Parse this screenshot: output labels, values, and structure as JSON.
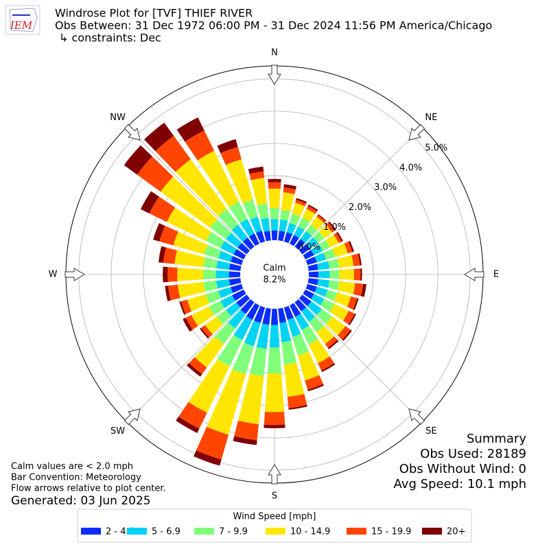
{
  "chart_data": {
    "type": "windrose",
    "title": "Windrose Plot for [TVF] THIEF RIVER",
    "subtitle": "Obs Between: 31 Dec 1972 06:00 PM - 31 Dec 2024 11:56 PM America/Chicago",
    "constraints": "↳ constraints: Dec",
    "logo_text": "IEM",
    "x": [
      0,
      10,
      20,
      30,
      40,
      50,
      60,
      70,
      80,
      90,
      100,
      110,
      120,
      130,
      140,
      150,
      160,
      170,
      180,
      190,
      200,
      210,
      220,
      230,
      240,
      250,
      260,
      270,
      280,
      290,
      300,
      310,
      320,
      330,
      340,
      350
    ],
    "compass_labels": [
      "N",
      "NE",
      "E",
      "SE",
      "S",
      "SW",
      "W",
      "NW"
    ],
    "ylim": [
      0,
      5.4
    ],
    "yticks": [
      {
        "value": 0,
        "label": "0.0%"
      },
      {
        "value": 1,
        "label": "1.0%"
      },
      {
        "value": 2,
        "label": "2.0%"
      },
      {
        "value": 3,
        "label": "3.0%"
      },
      {
        "value": 4,
        "label": "4.0%"
      },
      {
        "value": 5,
        "label": "5.0%"
      }
    ],
    "grid": true,
    "calm": {
      "label": "Calm",
      "value": 8.2,
      "value_label": "8.2%"
    },
    "legend_title": "Wind Speed [mph]",
    "series": [
      {
        "name": "2 - 4.9",
        "color": "#0a2cff",
        "values": [
          0.3,
          0.3,
          0.3,
          0.3,
          0.3,
          0.3,
          0.3,
          0.3,
          0.3,
          0.3,
          0.3,
          0.3,
          0.3,
          0.35,
          0.35,
          0.4,
          0.4,
          0.45,
          0.5,
          0.5,
          0.5,
          0.5,
          0.45,
          0.4,
          0.4,
          0.35,
          0.35,
          0.35,
          0.35,
          0.35,
          0.35,
          0.35,
          0.35,
          0.35,
          0.35,
          0.3
        ]
      },
      {
        "name": "5 - 6.9",
        "color": "#00d4f4",
        "values": [
          0.35,
          0.35,
          0.3,
          0.3,
          0.3,
          0.3,
          0.3,
          0.3,
          0.35,
          0.35,
          0.35,
          0.35,
          0.35,
          0.4,
          0.4,
          0.45,
          0.55,
          0.6,
          0.7,
          0.75,
          0.75,
          0.7,
          0.55,
          0.4,
          0.4,
          0.4,
          0.4,
          0.4,
          0.4,
          0.4,
          0.45,
          0.45,
          0.5,
          0.5,
          0.45,
          0.4
        ]
      },
      {
        "name": "7 - 9.9",
        "color": "#80ff7a",
        "values": [
          0.35,
          0.3,
          0.3,
          0.3,
          0.25,
          0.25,
          0.25,
          0.3,
          0.3,
          0.3,
          0.3,
          0.3,
          0.35,
          0.4,
          0.4,
          0.5,
          0.6,
          0.7,
          0.8,
          0.85,
          0.9,
          0.9,
          0.6,
          0.35,
          0.4,
          0.4,
          0.4,
          0.4,
          0.4,
          0.45,
          0.5,
          0.6,
          0.6,
          0.6,
          0.55,
          0.45
        ]
      },
      {
        "name": "10 - 14.9",
        "color": "#ffe600",
        "values": [
          0.6,
          0.55,
          0.35,
          0.3,
          0.3,
          0.3,
          0.3,
          0.4,
          0.45,
          0.45,
          0.5,
          0.45,
          0.5,
          0.5,
          0.45,
          0.65,
          0.8,
          1.0,
          1.2,
          1.5,
          1.95,
          1.6,
          0.9,
          0.45,
          0.6,
          0.6,
          0.8,
          0.8,
          0.9,
          1.0,
          1.35,
          1.9,
          1.9,
          1.75,
          1.3,
          0.8
        ]
      },
      {
        "name": "15 - 19.9",
        "color": "#ff4500",
        "values": [
          0.2,
          0.15,
          0.1,
          0.1,
          0.07,
          0.1,
          0.1,
          0.15,
          0.2,
          0.2,
          0.25,
          0.2,
          0.2,
          0.2,
          0.15,
          0.25,
          0.3,
          0.35,
          0.4,
          0.5,
          0.8,
          0.55,
          0.25,
          0.15,
          0.2,
          0.2,
          0.3,
          0.3,
          0.35,
          0.45,
          0.6,
          0.9,
          0.9,
          0.7,
          0.4,
          0.2
        ]
      },
      {
        "name": "20+",
        "color": "#800000",
        "values": [
          0.1,
          0.1,
          0.05,
          0.05,
          0.03,
          0.05,
          0.05,
          0.05,
          0.05,
          0.05,
          0.1,
          0.05,
          0.05,
          0.05,
          0.05,
          0.05,
          0.05,
          0.05,
          0.1,
          0.15,
          0.2,
          0.15,
          0.1,
          0.05,
          0.1,
          0.05,
          0.1,
          0.15,
          0.15,
          0.2,
          0.3,
          0.5,
          0.5,
          0.45,
          0.25,
          0.15
        ]
      }
    ],
    "notes": [
      "Calm values are < 2.0 mph",
      "Bar Convention: Meteorology",
      "Flow arrows relative to plot center."
    ],
    "generated": "Generated: 03 Jun 2025",
    "summary": [
      "Summary",
      "Obs Used: 28189",
      "Obs Without Wind: 0",
      "Avg Speed: 10.1 mph"
    ]
  }
}
